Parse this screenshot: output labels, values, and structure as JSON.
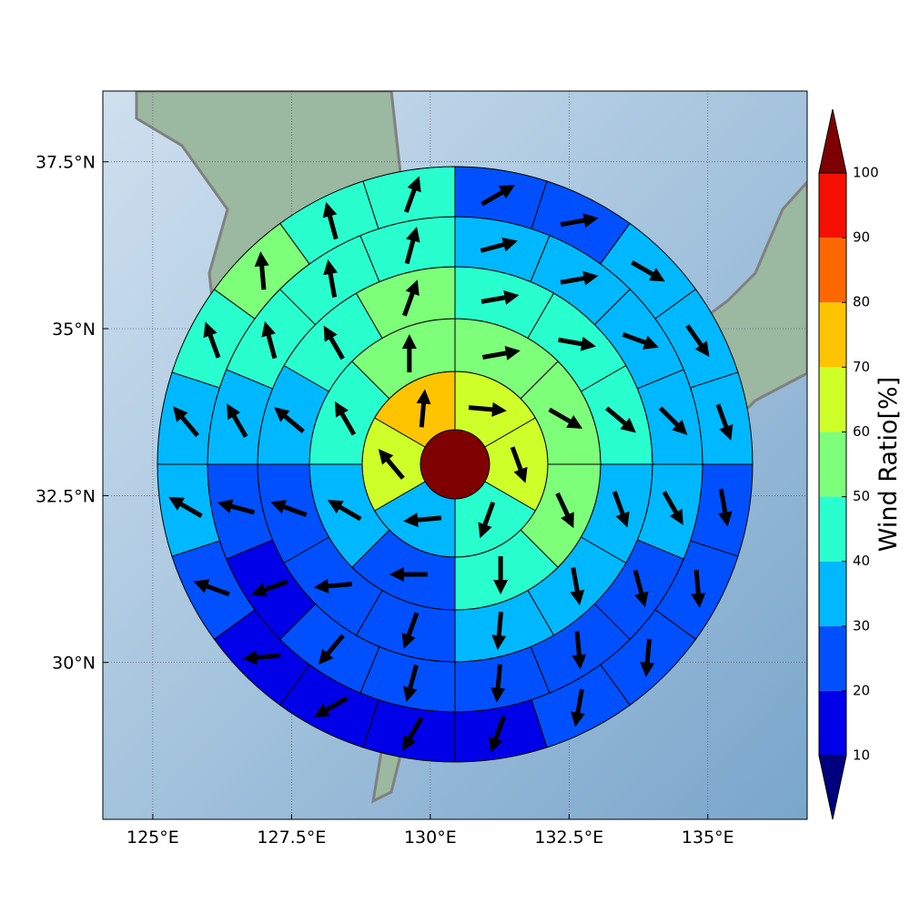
{
  "map": {
    "xlim": [
      124.1,
      136.79
    ],
    "ylim": [
      27.65,
      38.56
    ],
    "xticks": [
      {
        "value": 125,
        "label": "125°E"
      },
      {
        "value": 127.5,
        "label": "127.5°E"
      },
      {
        "value": 130,
        "label": "130°E"
      },
      {
        "value": 132.5,
        "label": "132.5°E"
      },
      {
        "value": 135,
        "label": "135°E"
      }
    ],
    "yticks": [
      {
        "value": 30,
        "label": "30°N"
      },
      {
        "value": 32.5,
        "label": "32.5°N"
      },
      {
        "value": 35,
        "label": "35°N"
      },
      {
        "value": 37.5,
        "label": "37.5°N"
      }
    ],
    "grid": true,
    "center": {
      "value": 105
    },
    "rings": [
      {
        "values": [
          65,
          65,
          45,
          35,
          65,
          75
        ],
        "directions": [
          95,
          160,
          200,
          265,
          320,
          5
        ]
      },
      {
        "values": [
          55,
          55,
          55,
          45,
          25,
          35,
          45,
          55
        ],
        "directions": [
          80,
          120,
          155,
          180,
          270,
          300,
          330,
          0
        ]
      },
      {
        "values": [
          45,
          45,
          45,
          35,
          35,
          35,
          25,
          25,
          25,
          35,
          45,
          55
        ],
        "directions": [
          80,
          100,
          130,
          160,
          170,
          185,
          200,
          265,
          290,
          310,
          330,
          20
        ]
      },
      {
        "values": [
          35,
          35,
          35,
          35,
          35,
          25,
          25,
          25,
          25,
          25,
          15,
          25,
          35,
          45,
          45,
          45
        ],
        "directions": [
          75,
          80,
          110,
          135,
          150,
          165,
          175,
          185,
          195,
          220,
          250,
          285,
          330,
          345,
          350,
          15
        ]
      },
      {
        "values": [
          25,
          25,
          35,
          35,
          35,
          25,
          25,
          25,
          25,
          15,
          15,
          15,
          15,
          25,
          35,
          35,
          45,
          55,
          45,
          45
        ],
        "directions": [
          60,
          80,
          120,
          145,
          160,
          170,
          175,
          185,
          190,
          200,
          210,
          240,
          265,
          290,
          300,
          320,
          340,
          355,
          345,
          20
        ]
      }
    ],
    "colorbar": {
      "label": "Wind Ratio[%]",
      "ticks": [
        10,
        20,
        30,
        40,
        50,
        60,
        70,
        80,
        90,
        100
      ],
      "colors": [
        "#0000e8",
        "#0050ff",
        "#00b8ff",
        "#29ffce",
        "#7dff7a",
        "#ceff29",
        "#ffc400",
        "#ff6800",
        "#f50f00"
      ],
      "under_color": "#00007f",
      "over_color": "#7f0000"
    }
  }
}
